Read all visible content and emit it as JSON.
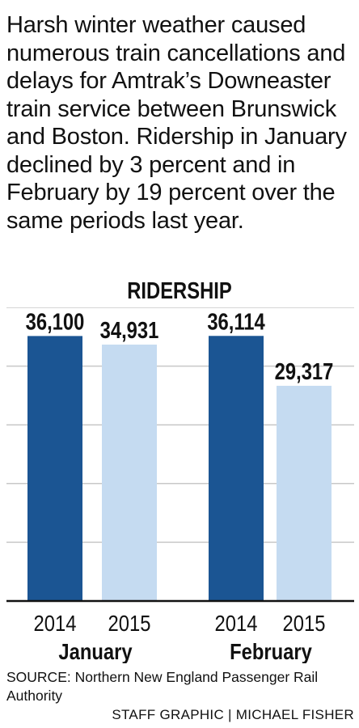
{
  "intro_text": "Harsh winter weather caused numerous train cancellations and delays for Amtrak’s Downeaster train service between Brunswick and Boston. Ridership in January declined by 3 percent and in February by 19 percent over the same periods last year.",
  "source": "SOURCE: Northern New England Passenger Rail Authority",
  "credit": "STAFF GRAPHIC | MICHAEL FISHER",
  "chart_data": {
    "type": "bar",
    "title": "RIDERSHIP",
    "groups": [
      {
        "name": "January",
        "bars": [
          {
            "category": "2014",
            "value": 36100,
            "label": "36,100",
            "color": "#1b5593"
          },
          {
            "category": "2015",
            "value": 34931,
            "label": "34,931",
            "color": "#c5dbf1"
          }
        ]
      },
      {
        "name": "February",
        "bars": [
          {
            "category": "2014",
            "value": 36114,
            "label": "36,114",
            "color": "#1b5593"
          },
          {
            "category": "2015",
            "value": 29317,
            "label": "29,317",
            "color": "#c5dbf1"
          }
        ]
      }
    ],
    "ylim": [
      0,
      40000
    ],
    "grid": true,
    "xlabel": "",
    "ylabel": ""
  }
}
